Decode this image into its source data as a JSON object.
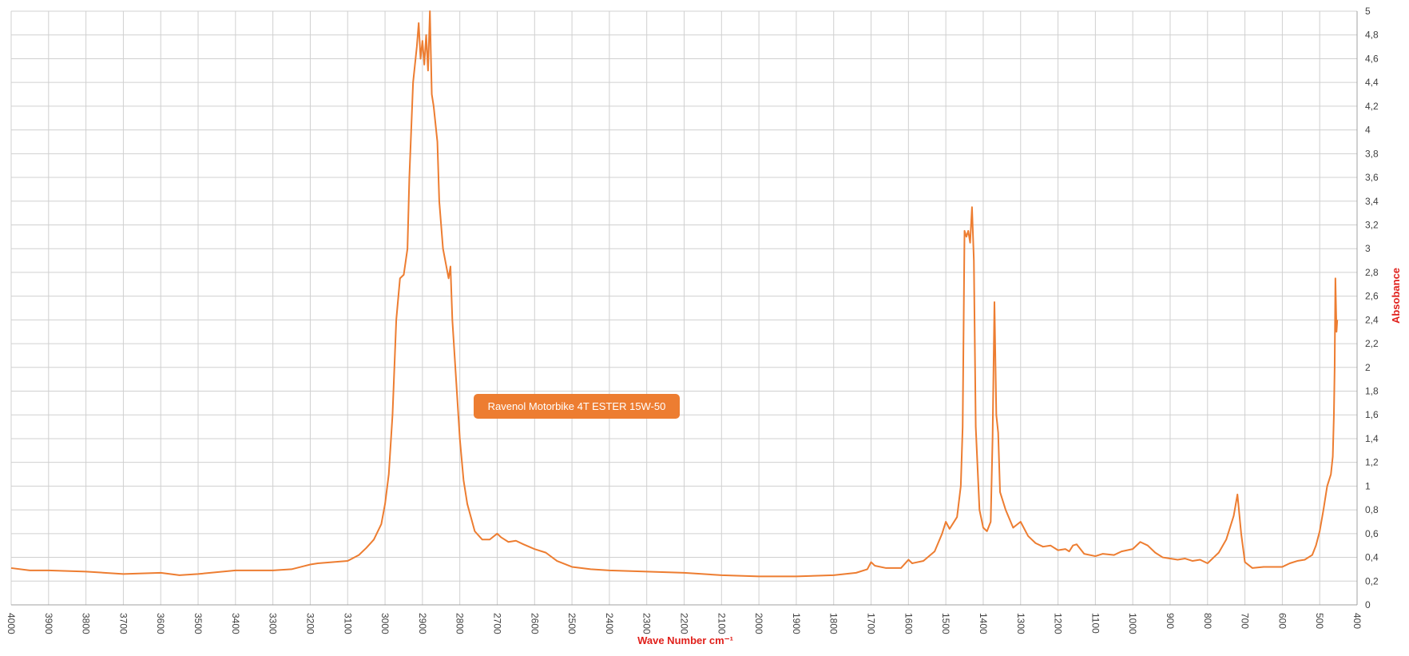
{
  "chart_data": {
    "type": "line",
    "x_label": "Wave Number cm⁻¹",
    "y_label": "Absobance",
    "x": [
      4000,
      3950,
      3900,
      3800,
      3700,
      3600,
      3550,
      3500,
      3400,
      3300,
      3250,
      3200,
      3180,
      3100,
      3070,
      3050,
      3030,
      3010,
      3000,
      2990,
      2980,
      2970,
      2960,
      2950,
      2940,
      2935,
      2925,
      2915,
      2910,
      2905,
      2900,
      2895,
      2890,
      2885,
      2880,
      2875,
      2870,
      2860,
      2855,
      2845,
      2830,
      2825,
      2820,
      2810,
      2800,
      2790,
      2780,
      2760,
      2740,
      2720,
      2700,
      2690,
      2670,
      2650,
      2630,
      2600,
      2570,
      2540,
      2500,
      2450,
      2400,
      2300,
      2200,
      2100,
      2000,
      1900,
      1800,
      1740,
      1710,
      1700,
      1690,
      1660,
      1620,
      1600,
      1590,
      1560,
      1530,
      1510,
      1500,
      1490,
      1470,
      1460,
      1455,
      1450,
      1445,
      1440,
      1435,
      1430,
      1425,
      1420,
      1410,
      1400,
      1390,
      1380,
      1375,
      1370,
      1365,
      1360,
      1355,
      1340,
      1320,
      1300,
      1280,
      1260,
      1240,
      1220,
      1200,
      1180,
      1170,
      1160,
      1150,
      1130,
      1100,
      1080,
      1050,
      1030,
      1000,
      980,
      960,
      940,
      920,
      900,
      880,
      860,
      840,
      820,
      800,
      780,
      770,
      750,
      730,
      720,
      710,
      700,
      680,
      650,
      620,
      600,
      580,
      560,
      540,
      520,
      510,
      500,
      490,
      480,
      470,
      465,
      462,
      460,
      458,
      455,
      453
    ],
    "series": [
      {
        "name": "Ravenol Motorbike 4T ESTER 15W-50",
        "color": "#ed7d31",
        "values": [
          0.31,
          0.29,
          0.29,
          0.28,
          0.26,
          0.27,
          0.25,
          0.26,
          0.29,
          0.29,
          0.3,
          0.34,
          0.35,
          0.37,
          0.42,
          0.48,
          0.55,
          0.68,
          0.85,
          1.1,
          1.6,
          2.4,
          2.75,
          2.78,
          3.0,
          3.6,
          4.4,
          4.7,
          4.9,
          4.6,
          4.75,
          4.55,
          4.8,
          4.5,
          5.0,
          4.3,
          4.2,
          3.9,
          3.4,
          3.0,
          2.75,
          2.85,
          2.4,
          1.9,
          1.4,
          1.05,
          0.85,
          0.62,
          0.55,
          0.55,
          0.6,
          0.57,
          0.53,
          0.54,
          0.51,
          0.47,
          0.44,
          0.37,
          0.32,
          0.3,
          0.29,
          0.28,
          0.27,
          0.25,
          0.24,
          0.24,
          0.25,
          0.27,
          0.3,
          0.36,
          0.33,
          0.31,
          0.31,
          0.38,
          0.35,
          0.37,
          0.45,
          0.6,
          0.7,
          0.64,
          0.74,
          1.0,
          1.5,
          3.15,
          3.1,
          3.15,
          3.05,
          3.35,
          2.9,
          1.5,
          0.8,
          0.65,
          0.62,
          0.7,
          1.4,
          2.55,
          1.6,
          1.45,
          0.95,
          0.8,
          0.65,
          0.7,
          0.58,
          0.52,
          0.49,
          0.5,
          0.46,
          0.47,
          0.45,
          0.5,
          0.51,
          0.43,
          0.41,
          0.43,
          0.42,
          0.45,
          0.47,
          0.53,
          0.5,
          0.44,
          0.4,
          0.39,
          0.38,
          0.39,
          0.37,
          0.38,
          0.35,
          0.41,
          0.44,
          0.55,
          0.75,
          0.93,
          0.6,
          0.36,
          0.31,
          0.32,
          0.32,
          0.32,
          0.35,
          0.37,
          0.38,
          0.42,
          0.5,
          0.62,
          0.8,
          1.0,
          1.1,
          1.25,
          1.6,
          2.0,
          2.75,
          2.3,
          2.4
        ]
      }
    ],
    "xlim": [
      4000,
      400
    ],
    "xticks": [
      4000,
      3900,
      3800,
      3700,
      3600,
      3500,
      3400,
      3300,
      3200,
      3100,
      3000,
      2900,
      2800,
      2700,
      2600,
      2500,
      2400,
      2300,
      2200,
      2100,
      2000,
      1900,
      1800,
      1700,
      1600,
      1500,
      1400,
      1300,
      1200,
      1100,
      1000,
      900,
      800,
      700,
      600,
      500,
      400
    ],
    "ylim": [
      0,
      5
    ],
    "yticks": [
      0,
      {
        "value": 0.2,
        "label": "0,2"
      },
      {
        "value": 0.4,
        "label": "0,4"
      },
      {
        "value": 0.6,
        "label": "0,6"
      },
      {
        "value": 0.8,
        "label": "0,8"
      },
      1,
      {
        "value": 1.2,
        "label": "1,2"
      },
      {
        "value": 1.4,
        "label": "1,4"
      },
      {
        "value": 1.6,
        "label": "1,6"
      },
      {
        "value": 1.8,
        "label": "1,8"
      },
      2,
      {
        "value": 2.2,
        "label": "2,2"
      },
      {
        "value": 2.4,
        "label": "2,4"
      },
      {
        "value": 2.6,
        "label": "2,6"
      },
      {
        "value": 2.8,
        "label": "2,8"
      },
      3,
      {
        "value": 3.2,
        "label": "3,2"
      },
      {
        "value": 3.4,
        "label": "3,4"
      },
      {
        "value": 3.6,
        "label": "3,6"
      },
      {
        "value": 3.8,
        "label": "3,8"
      },
      4,
      {
        "value": 4.2,
        "label": "4,2"
      },
      {
        "value": 4.4,
        "label": "4,4"
      },
      {
        "value": 4.6,
        "label": "4,6"
      },
      {
        "value": 4.8,
        "label": "4,8"
      },
      5
    ],
    "grid": true
  }
}
